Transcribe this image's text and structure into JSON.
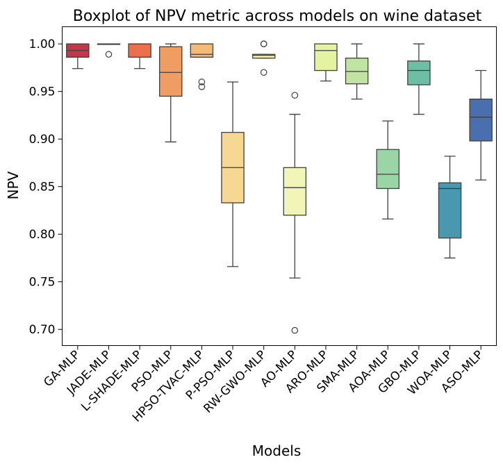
{
  "chart_data": {
    "type": "boxplot",
    "title": "Boxplot of NPV metric across models on wine dataset",
    "xlabel": "Models",
    "ylabel": "NPV",
    "ylim": [
      0.683,
      1.018
    ],
    "yticks": [
      0.7,
      0.75,
      0.8,
      0.85,
      0.9,
      0.95,
      1.0
    ],
    "ytick_labels": [
      "0.70",
      "0.75",
      "0.80",
      "0.85",
      "0.90",
      "0.95",
      "1.00"
    ],
    "grid": false,
    "boxes": [
      {
        "label": "GA-MLP",
        "color": "#c0394b",
        "whislo": 0.974,
        "q1": 0.986,
        "med": 0.993,
        "q3": 1.0,
        "whishi": 1.0,
        "fliers": []
      },
      {
        "label": "JADE-MLP",
        "color": "#de5a4d",
        "whislo": 1.0,
        "q1": 1.0,
        "med": 1.0,
        "q3": 1.0,
        "whishi": 1.0,
        "fliers": [
          0.989
        ]
      },
      {
        "label": "L-SHADE-MLP",
        "color": "#ec6e4a",
        "whislo": 0.974,
        "q1": 0.986,
        "med": 1.0,
        "q3": 1.0,
        "whishi": 1.0,
        "fliers": []
      },
      {
        "label": "PSO-MLP",
        "color": "#f09d64",
        "whislo": 0.897,
        "q1": 0.945,
        "med": 0.97,
        "q3": 0.997,
        "whishi": 1.0,
        "fliers": []
      },
      {
        "label": "HPSO-TVAC-MLP",
        "color": "#f5bb76",
        "whislo": 0.986,
        "q1": 0.986,
        "med": 0.989,
        "q3": 1.0,
        "whishi": 1.0,
        "fliers": [
          0.955,
          0.96
        ]
      },
      {
        "label": "P-PSO-MLP",
        "color": "#f6d893",
        "whislo": 0.766,
        "q1": 0.833,
        "med": 0.87,
        "q3": 0.907,
        "whishi": 0.96,
        "fliers": []
      },
      {
        "label": "RW-GWO-MLP",
        "color": "#f8ecab",
        "whislo": 0.985,
        "q1": 0.985,
        "med": 0.988,
        "q3": 0.989,
        "whishi": 0.989,
        "fliers": [
          0.97,
          1.0,
          1.0
        ]
      },
      {
        "label": "AO-MLP",
        "color": "#f1f5b8",
        "whislo": 0.754,
        "q1": 0.82,
        "med": 0.849,
        "q3": 0.87,
        "whishi": 0.926,
        "fliers": [
          0.946,
          0.699
        ]
      },
      {
        "label": "ARO-MLP",
        "color": "#e3f3a2",
        "whislo": 0.961,
        "q1": 0.972,
        "med": 0.993,
        "q3": 1.0,
        "whishi": 1.0,
        "fliers": []
      },
      {
        "label": "SMA-MLP",
        "color": "#c2e4a2",
        "whislo": 0.942,
        "q1": 0.958,
        "med": 0.971,
        "q3": 0.985,
        "whishi": 1.0,
        "fliers": []
      },
      {
        "label": "AOA-MLP",
        "color": "#9bd5a5",
        "whislo": 0.816,
        "q1": 0.848,
        "med": 0.863,
        "q3": 0.889,
        "whishi": 0.919,
        "fliers": []
      },
      {
        "label": "GBO-MLP",
        "color": "#6cbea4",
        "whislo": 0.926,
        "q1": 0.957,
        "med": 0.972,
        "q3": 0.982,
        "whishi": 1.0,
        "fliers": []
      },
      {
        "label": "WOA-MLP",
        "color": "#4a98b0",
        "whislo": 0.775,
        "q1": 0.796,
        "med": 0.848,
        "q3": 0.854,
        "whishi": 0.882,
        "fliers": []
      },
      {
        "label": "ASO-MLP",
        "color": "#4a6fae",
        "whislo": 0.857,
        "q1": 0.898,
        "med": 0.923,
        "q3": 0.942,
        "whishi": 0.972,
        "fliers": []
      }
    ]
  }
}
